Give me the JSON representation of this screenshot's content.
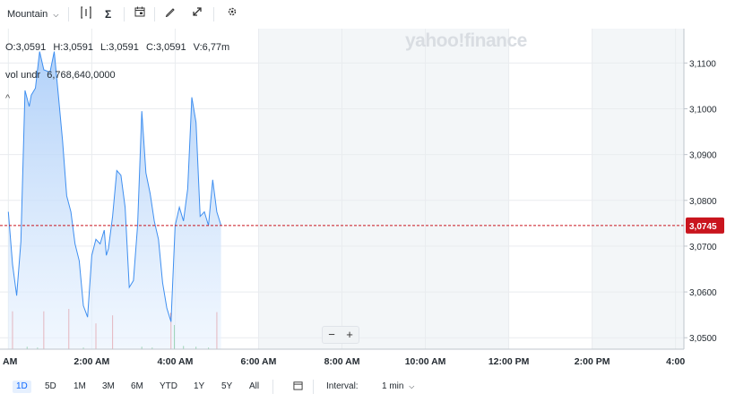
{
  "toolbar": {
    "timezone_label": "Mountain",
    "icons": [
      "compare-icon",
      "indicators-icon",
      "events-icon",
      "draw-icon",
      "fullscreen-icon",
      "settings-icon"
    ]
  },
  "watermark": "yahoo!finance",
  "ohlc": {
    "open": "O:3,0591",
    "high": "H:3,0591",
    "low": "L:3,0591",
    "close": "C:3,0591",
    "volume": "V:6,77m"
  },
  "volume_indicator": {
    "label": "vol undr",
    "value": "6,768,640,0000"
  },
  "zoom": {
    "minus": "−",
    "plus": "+"
  },
  "range_buttons": [
    "1D",
    "5D",
    "1M",
    "3M",
    "6M",
    "YTD",
    "1Y",
    "5Y",
    "All"
  ],
  "active_range": "1D",
  "interval": {
    "label": "Interval:",
    "value": "1 min"
  },
  "colors": {
    "line": "#3f8ff0",
    "fill_top": "#a9ccf8",
    "fill_bottom": "#e8f2fe",
    "price_tag": "#c9151e",
    "vol_up": "#2ba84a",
    "vol_down": "#e45757"
  },
  "chart_data": {
    "type": "area",
    "x_ticks": [
      "AM",
      "2:00 AM",
      "4:00 AM",
      "6:00 AM",
      "8:00 AM",
      "10:00 AM",
      "12:00 PM",
      "2:00 PM",
      "4:00"
    ],
    "y_ticks": [
      "3,1100",
      "3,1000",
      "3,0900",
      "3,0800",
      "3,0700",
      "3,0600",
      "3,0500"
    ],
    "y_tick_values": [
      3.11,
      3.1,
      3.09,
      3.08,
      3.07,
      3.06,
      3.05
    ],
    "ylim": [
      3.0475,
      3.1175
    ],
    "xlim": [
      -0.2,
      16.2
    ],
    "last_price": 3.0745,
    "last_price_label": "3,0745",
    "series": [
      {
        "x": [
          0,
          0.1,
          0.2,
          0.3,
          0.4,
          0.5,
          0.55,
          0.65,
          0.75,
          0.85,
          1.0,
          1.1,
          1.2,
          1.3,
          1.4,
          1.5,
          1.6,
          1.7,
          1.8,
          1.9,
          2.0,
          2.1,
          2.2,
          2.3,
          2.35,
          2.4,
          2.5,
          2.6,
          2.7,
          2.8,
          2.9,
          3.0,
          3.1,
          3.2,
          3.3,
          3.4,
          3.5,
          3.6,
          3.7,
          3.8,
          3.9,
          4.0,
          4.1,
          4.2,
          4.3,
          4.4,
          4.5,
          4.6,
          4.7,
          4.8,
          4.9,
          5.0,
          5.1
        ],
        "y": [
          3.0775,
          3.066,
          3.0592,
          3.071,
          3.104,
          3.1005,
          3.103,
          3.1045,
          3.1125,
          3.1085,
          3.108,
          3.1125,
          3.103,
          3.093,
          3.081,
          3.0775,
          3.0705,
          3.0668,
          3.057,
          3.0545,
          3.068,
          3.0715,
          3.0705,
          3.0735,
          3.068,
          3.0695,
          3.0765,
          3.0865,
          3.0855,
          3.0785,
          3.061,
          3.0625,
          3.0745,
          3.0995,
          3.086,
          3.0815,
          3.0755,
          3.0715,
          3.062,
          3.0565,
          3.0535,
          3.0745,
          3.0785,
          3.0755,
          3.0825,
          3.1025,
          3.097,
          3.0765,
          3.0775,
          3.0745,
          3.0845,
          3.0775,
          3.0745
        ]
      }
    ],
    "volume_bars": [
      {
        "x": 0.1,
        "h": 0.47,
        "color": "down"
      },
      {
        "x": 0.85,
        "h": 0.47,
        "color": "down"
      },
      {
        "x": 1.45,
        "h": 0.5,
        "color": "down"
      },
      {
        "x": 2.1,
        "h": 0.32,
        "color": "down"
      },
      {
        "x": 2.5,
        "h": 0.42,
        "color": "down"
      },
      {
        "x": 3.9,
        "h": 0.45,
        "color": "down"
      },
      {
        "x": 3.98,
        "h": 0.3,
        "color": "up"
      },
      {
        "x": 5.0,
        "h": 0.46,
        "color": "down"
      },
      {
        "x": 0.45,
        "h": 0.03,
        "color": "up"
      },
      {
        "x": 0.7,
        "h": 0.02,
        "color": "up"
      },
      {
        "x": 1.8,
        "h": 0.02,
        "color": "up"
      },
      {
        "x": 3.2,
        "h": 0.03,
        "color": "up"
      },
      {
        "x": 3.45,
        "h": 0.02,
        "color": "up"
      },
      {
        "x": 4.2,
        "h": 0.04,
        "color": "up"
      },
      {
        "x": 4.5,
        "h": 0.03,
        "color": "up"
      },
      {
        "x": 4.8,
        "h": 0.02,
        "color": "up"
      }
    ],
    "grid": true
  }
}
